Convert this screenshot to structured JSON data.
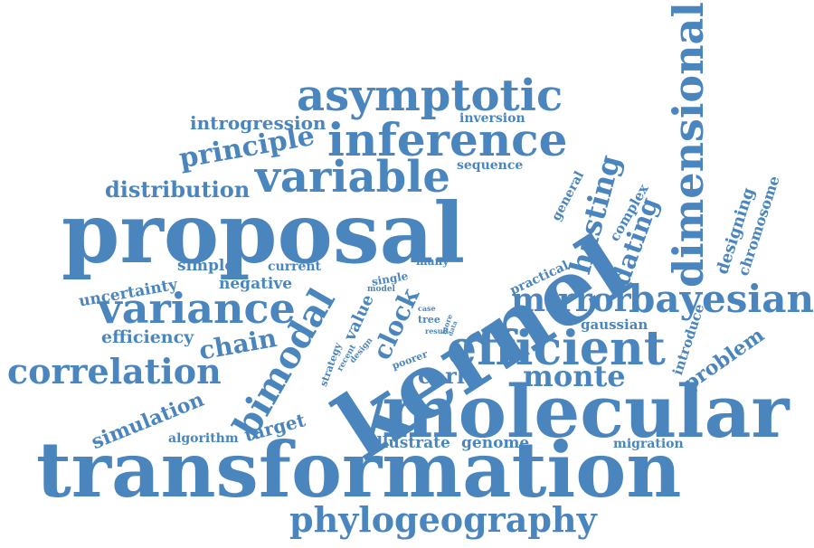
{
  "colors": {
    "word": "#4a86bd",
    "background": "#ffffff"
  },
  "words": [
    {
      "text": "transformation",
      "size": 84
    },
    {
      "text": "proposal",
      "size": 92
    },
    {
      "text": "kernel",
      "size": 100
    },
    {
      "text": "molecular",
      "size": 80
    },
    {
      "text": "asymptotic",
      "size": 48
    },
    {
      "text": "inference",
      "size": 50
    },
    {
      "text": "variable",
      "size": 48
    },
    {
      "text": "dimensional",
      "size": 46
    },
    {
      "text": "efficient",
      "size": 52
    },
    {
      "text": "phylogeography",
      "size": 38
    },
    {
      "text": "variance",
      "size": 46
    },
    {
      "text": "correlation",
      "size": 38
    },
    {
      "text": "bayesian",
      "size": 42
    },
    {
      "text": "mirror",
      "size": 36
    },
    {
      "text": "bimodal",
      "size": 40
    },
    {
      "text": "monte",
      "size": 32
    },
    {
      "text": "hasting",
      "size": 32
    },
    {
      "text": "dating",
      "size": 28
    },
    {
      "text": "principle",
      "size": 30
    },
    {
      "text": "distribution",
      "size": 24
    },
    {
      "text": "chain",
      "size": 28
    },
    {
      "text": "clock",
      "size": 28
    },
    {
      "text": "carlo",
      "size": 24
    },
    {
      "text": "introgression",
      "size": 20
    },
    {
      "text": "inversion",
      "size": 14
    },
    {
      "text": "sequence",
      "size": 14
    },
    {
      "text": "general",
      "size": 14
    },
    {
      "text": "complex",
      "size": 15
    },
    {
      "text": "designing",
      "size": 18
    },
    {
      "text": "chromosome",
      "size": 16
    },
    {
      "text": "problem",
      "size": 22
    },
    {
      "text": "introduce",
      "size": 15
    },
    {
      "text": "gaussian",
      "size": 15
    },
    {
      "text": "practical",
      "size": 14
    },
    {
      "text": "many",
      "size": 12
    },
    {
      "text": "single",
      "size": 12
    },
    {
      "text": "uncertainty",
      "size": 17
    },
    {
      "text": "simple",
      "size": 17
    },
    {
      "text": "current",
      "size": 14
    },
    {
      "text": "negative",
      "size": 17
    },
    {
      "text": "efficiency",
      "size": 19
    },
    {
      "text": "value",
      "size": 18
    },
    {
      "text": "case",
      "size": 8
    },
    {
      "text": "tree",
      "size": 11
    },
    {
      "text": "more",
      "size": 8
    },
    {
      "text": "data",
      "size": 7
    },
    {
      "text": "result",
      "size": 8
    },
    {
      "text": "model",
      "size": 9
    },
    {
      "text": "strategy",
      "size": 11
    },
    {
      "text": "recent",
      "size": 9
    },
    {
      "text": "design",
      "size": 9
    },
    {
      "text": "poorer",
      "size": 11
    },
    {
      "text": "simulation",
      "size": 22
    },
    {
      "text": "algorithm",
      "size": 14
    },
    {
      "text": "target",
      "size": 20
    },
    {
      "text": "illustrate",
      "size": 17
    },
    {
      "text": "genome",
      "size": 17
    },
    {
      "text": "migration",
      "size": 14
    }
  ]
}
